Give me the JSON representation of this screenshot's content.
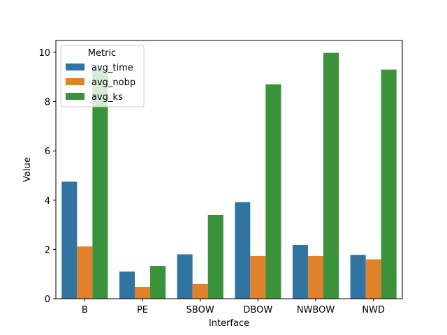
{
  "chart_data": {
    "type": "bar",
    "xlabel": "Interface",
    "ylabel": "Value",
    "categories": [
      "B",
      "PE",
      "SBOW",
      "DBOW",
      "NWBOW",
      "NWD"
    ],
    "series": [
      {
        "name": "avg_time",
        "color": "#3274a1",
        "values": [
          4.75,
          1.1,
          1.8,
          3.92,
          2.18,
          1.78
        ]
      },
      {
        "name": "avg_nobp",
        "color": "#e1812c",
        "values": [
          2.12,
          0.48,
          0.6,
          1.73,
          1.73,
          1.6
        ]
      },
      {
        "name": "avg_ks",
        "color": "#3a923a",
        "values": [
          9.3,
          1.33,
          3.4,
          8.7,
          9.98,
          9.3
        ]
      }
    ],
    "ylim": [
      0,
      10.48
    ],
    "yticks": [
      0,
      2,
      4,
      6,
      8,
      10
    ],
    "legend": {
      "title": "Metric",
      "position": "top-left"
    },
    "grid": false
  }
}
